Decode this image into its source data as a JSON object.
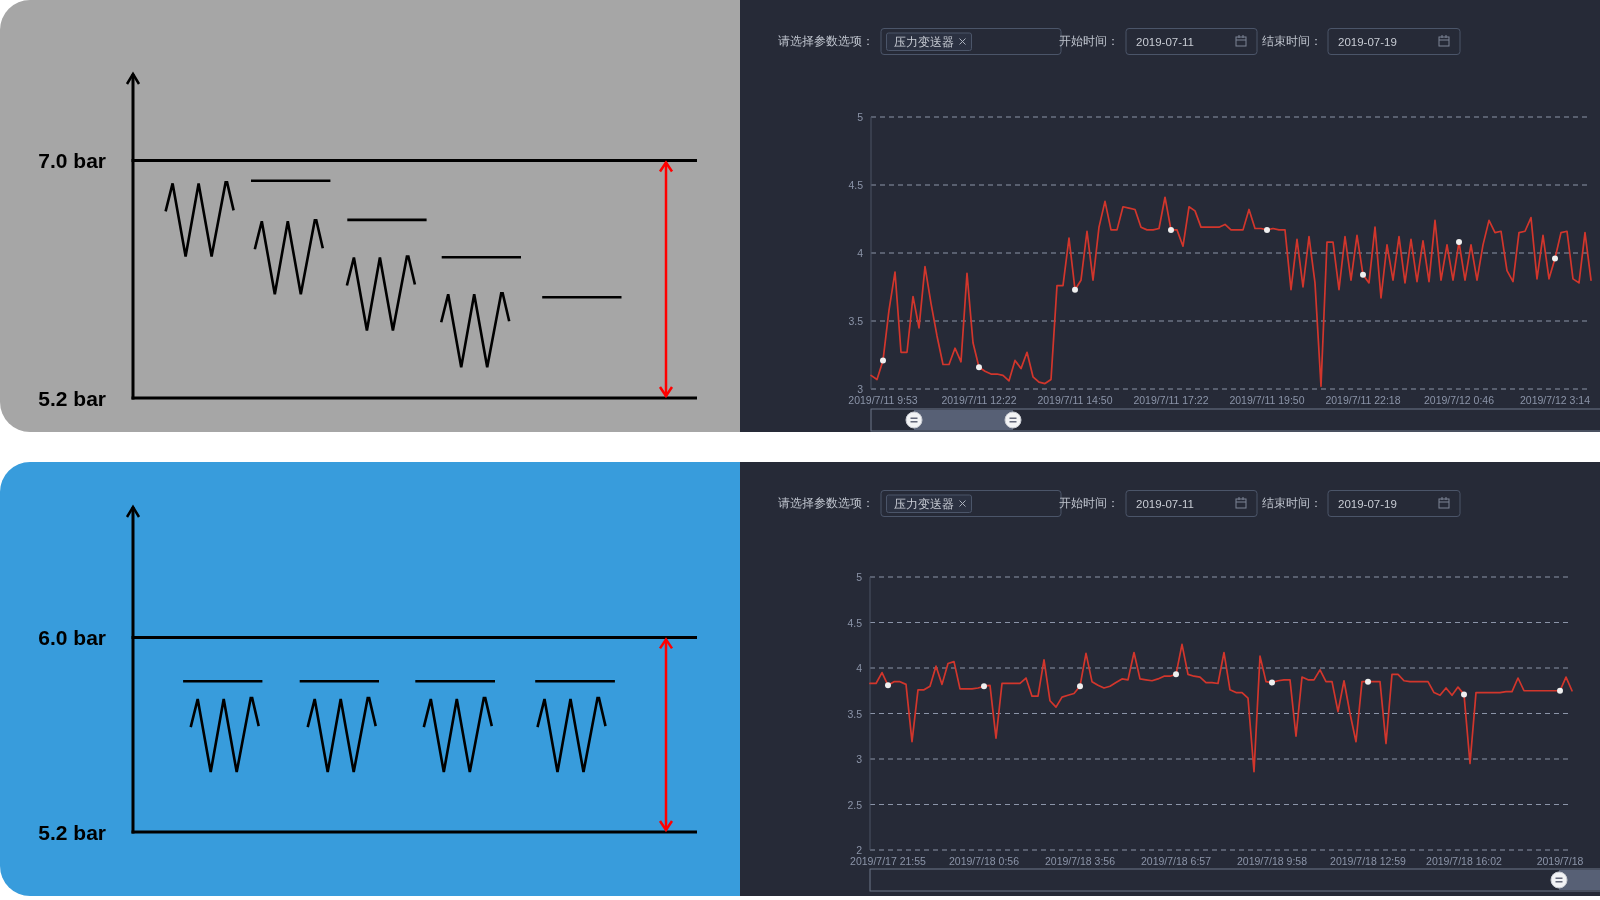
{
  "chart_data": [
    {
      "type": "other",
      "annotations": [
        "7.0 bar",
        "5.2 bar"
      ]
    },
    {
      "type": "line",
      "annotations": [
        "请选择参数选项：",
        "压力变送器",
        "开始时间：",
        "2019-07-11",
        "结束时间：",
        "2019-07-19"
      ],
      "categories": [
        null,
        null,
        "2019/7/11 9:53",
        null,
        null,
        null,
        null,
        null,
        null,
        null,
        null,
        null,
        null,
        null,
        null,
        null,
        null,
        null,
        "2019/7/11 12:22",
        null,
        null,
        null,
        null,
        null,
        null,
        null,
        null,
        null,
        null,
        null,
        null,
        null,
        null,
        null,
        "2019/7/11 14:50",
        null,
        null,
        null,
        null,
        null,
        null,
        null,
        null,
        null,
        null,
        null,
        null,
        null,
        null,
        null,
        "2019/7/11 17:22",
        null,
        null,
        null,
        null,
        null,
        null,
        null,
        null,
        null,
        null,
        null,
        null,
        null,
        null,
        null,
        "2019/7/11 19:50",
        null,
        null,
        null,
        null,
        null,
        null,
        null,
        null,
        null,
        null,
        null,
        null,
        null,
        null,
        null,
        "2019/7/11 22:18",
        null,
        null,
        null,
        null,
        null,
        null,
        null,
        null,
        null,
        null,
        null,
        null,
        null,
        null,
        null,
        "2019/7/12 0:46",
        null,
        null,
        null,
        null,
        null,
        null,
        null,
        null,
        null,
        null,
        null,
        null,
        null,
        null,
        null,
        "2019/7/12 3:14",
        null,
        null,
        null,
        null,
        null,
        null
      ],
      "series": [
        {
          "color": "#d2362c",
          "values": [
            3.1,
            3.07,
            3.21,
            3.58,
            3.86,
            3.27,
            3.27,
            3.68,
            3.45,
            3.9,
            3.63,
            3.39,
            3.18,
            3.18,
            3.3,
            3.2,
            3.85,
            3.34,
            3.16,
            3.13,
            3.11,
            3.11,
            3.1,
            3.06,
            3.21,
            3.15,
            3.27,
            3.09,
            3.05,
            3.04,
            3.07,
            3.76,
            3.76,
            4.11,
            3.73,
            3.8,
            4.16,
            3.8,
            4.19,
            4.38,
            4.17,
            4.17,
            4.34,
            4.33,
            4.32,
            4.19,
            4.17,
            4.17,
            4.18,
            4.41,
            4.17,
            4.17,
            4.05,
            4.34,
            4.31,
            4.19,
            4.19,
            4.19,
            4.19,
            4.21,
            4.17,
            4.17,
            4.17,
            4.32,
            4.18,
            4.18,
            4.17,
            4.18,
            4.17,
            4.17,
            3.73,
            4.1,
            3.75,
            4.12,
            3.78,
            3.02,
            4.08,
            4.08,
            3.73,
            4.12,
            3.8,
            4.13,
            3.84,
            3.78,
            4.19,
            3.67,
            4.06,
            3.8,
            4.12,
            3.78,
            4.1,
            3.79,
            4.09,
            3.79,
            4.24,
            3.8,
            4.06,
            3.8,
            4.08,
            3.8,
            4.06,
            3.8,
            4.06,
            4.24,
            4.15,
            4.16,
            3.87,
            3.79,
            4.15,
            4.16,
            4.26,
            3.81,
            4.13,
            3.81,
            3.96,
            4.15,
            4.16,
            3.81,
            3.78,
            4.15,
            3.8
          ]
        },
        {
          "type": "scatter",
          "color": "#f0f0f0",
          "values": [
            null,
            null,
            3.21,
            null,
            null,
            null,
            null,
            null,
            null,
            null,
            null,
            null,
            null,
            null,
            null,
            null,
            null,
            null,
            3.16,
            null,
            null,
            null,
            null,
            null,
            null,
            null,
            null,
            null,
            null,
            null,
            null,
            null,
            null,
            null,
            3.73,
            null,
            null,
            null,
            null,
            null,
            null,
            null,
            null,
            null,
            null,
            null,
            null,
            null,
            null,
            null,
            4.17,
            null,
            null,
            null,
            null,
            null,
            null,
            null,
            null,
            null,
            null,
            null,
            null,
            null,
            null,
            null,
            4.17,
            null,
            null,
            null,
            null,
            null,
            null,
            null,
            null,
            null,
            null,
            null,
            null,
            null,
            null,
            null,
            3.84,
            null,
            null,
            null,
            null,
            null,
            null,
            null,
            null,
            null,
            null,
            null,
            null,
            null,
            null,
            null,
            4.08,
            null,
            null,
            null,
            null,
            null,
            null,
            null,
            null,
            null,
            null,
            null,
            null,
            null,
            null,
            null,
            3.96,
            null,
            null,
            null,
            null,
            null,
            null
          ]
        }
      ],
      "ylim": [
        3,
        5
      ],
      "yticks": [
        3,
        3.5,
        4,
        4.5,
        5
      ],
      "grid": "y"
    },
    {
      "type": "other",
      "annotations": [
        "6.0 bar",
        "5.2 bar"
      ]
    },
    {
      "type": "line",
      "annotations": [
        "请选择参数选项：",
        "压力变送器",
        "开始时间：",
        "2019-07-11",
        "结束时间：",
        "2019-07-19"
      ],
      "categories": [
        null,
        null,
        null,
        "2019/7/17 21:55",
        null,
        null,
        null,
        null,
        null,
        null,
        null,
        null,
        null,
        null,
        null,
        null,
        null,
        null,
        null,
        "2019/7/18 0:56",
        null,
        null,
        null,
        null,
        null,
        null,
        null,
        null,
        null,
        null,
        null,
        null,
        null,
        null,
        null,
        "2019/7/18 3:56",
        null,
        null,
        null,
        null,
        null,
        null,
        null,
        null,
        null,
        null,
        null,
        null,
        null,
        null,
        null,
        "2019/7/18 6:57",
        null,
        null,
        null,
        null,
        null,
        null,
        null,
        null,
        null,
        null,
        null,
        null,
        null,
        null,
        null,
        "2019/7/18 9:58",
        null,
        null,
        null,
        null,
        null,
        null,
        null,
        null,
        null,
        null,
        null,
        null,
        null,
        null,
        null,
        "2019/7/18 12:59",
        null,
        null,
        null,
        null,
        null,
        null,
        null,
        null,
        null,
        null,
        null,
        null,
        null,
        null,
        null,
        "2019/7/18 16:02",
        null,
        null,
        null,
        null,
        null,
        null,
        null,
        null,
        null,
        null,
        null,
        null,
        null,
        null,
        null,
        "2019/7/18",
        null,
        null
      ],
      "series": [
        {
          "color": "#d2362c",
          "values": [
            3.83,
            3.83,
            3.95,
            3.81,
            3.85,
            3.85,
            3.82,
            3.19,
            3.76,
            3.76,
            3.8,
            4.02,
            3.82,
            4.05,
            4.07,
            3.77,
            3.77,
            3.77,
            3.78,
            3.8,
            3.81,
            3.23,
            3.83,
            3.83,
            3.83,
            3.83,
            3.89,
            3.69,
            3.69,
            4.09,
            3.64,
            3.57,
            3.68,
            3.7,
            3.72,
            3.8,
            4.16,
            3.85,
            3.81,
            3.78,
            3.8,
            3.84,
            3.88,
            3.87,
            4.17,
            3.88,
            3.87,
            3.86,
            3.88,
            3.91,
            3.91,
            3.93,
            4.26,
            3.93,
            3.91,
            3.9,
            3.84,
            3.84,
            3.83,
            4.17,
            3.76,
            3.73,
            3.73,
            3.67,
            2.86,
            4.13,
            3.85,
            3.84,
            3.86,
            3.87,
            3.87,
            3.25,
            3.9,
            3.87,
            3.87,
            3.98,
            3.85,
            3.85,
            3.52,
            3.86,
            3.5,
            3.19,
            3.85,
            3.85,
            3.85,
            3.85,
            3.17,
            3.93,
            3.93,
            3.86,
            3.85,
            3.85,
            3.85,
            3.85,
            3.73,
            3.7,
            3.78,
            3.7,
            3.79,
            3.71,
            2.95,
            3.73,
            3.73,
            3.73,
            3.73,
            3.73,
            3.74,
            3.74,
            3.89,
            3.75,
            3.75,
            3.75,
            3.75,
            3.75,
            3.75,
            3.75,
            3.9,
            3.75
          ]
        },
        {
          "type": "scatter",
          "color": "#f0f0f0",
          "values": [
            null,
            null,
            null,
            3.81,
            null,
            null,
            null,
            null,
            null,
            null,
            null,
            null,
            null,
            null,
            null,
            null,
            null,
            null,
            null,
            3.8,
            null,
            null,
            null,
            null,
            null,
            null,
            null,
            null,
            null,
            null,
            null,
            null,
            null,
            null,
            null,
            3.8,
            null,
            null,
            null,
            null,
            null,
            null,
            null,
            null,
            null,
            null,
            null,
            null,
            null,
            null,
            null,
            3.93,
            null,
            null,
            null,
            null,
            null,
            null,
            null,
            null,
            null,
            null,
            null,
            null,
            null,
            null,
            null,
            3.84,
            null,
            null,
            null,
            null,
            null,
            null,
            null,
            null,
            null,
            null,
            null,
            null,
            null,
            null,
            null,
            3.85,
            null,
            null,
            null,
            null,
            null,
            null,
            null,
            null,
            null,
            null,
            null,
            null,
            null,
            null,
            null,
            3.71,
            null,
            null,
            null,
            null,
            null,
            null,
            null,
            null,
            null,
            null,
            null,
            null,
            null,
            null,
            null,
            3.75,
            null,
            null
          ]
        }
      ],
      "ylim": [
        2,
        5
      ],
      "yticks": [
        2,
        2.5,
        3,
        3.5,
        4,
        4.5,
        5
      ],
      "grid": "y"
    }
  ]
}
